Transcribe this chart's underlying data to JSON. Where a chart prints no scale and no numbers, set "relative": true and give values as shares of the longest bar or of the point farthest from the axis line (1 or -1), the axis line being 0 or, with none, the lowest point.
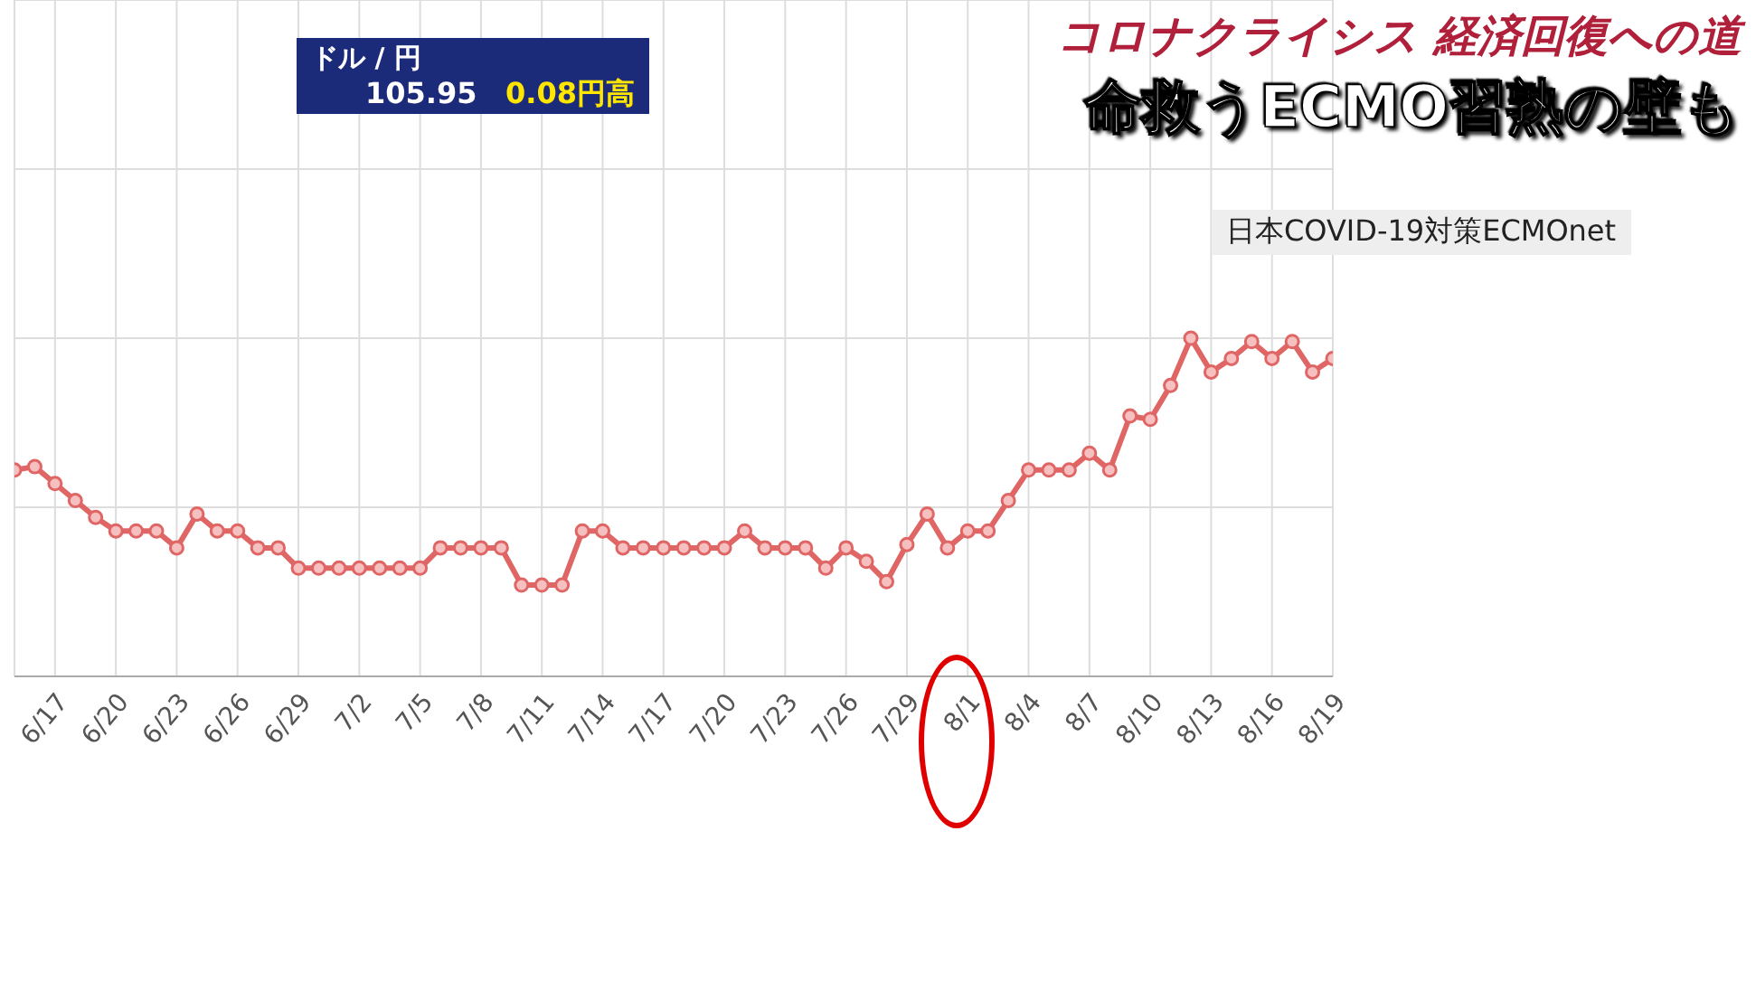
{
  "chart_data": {
    "type": "line",
    "title": "コロナクライシス 経済回復への道",
    "subtitle": "命救うECMO習熟の壁も",
    "annotations": [
      "日本COVID-19対策ECMOnet",
      "ドル / 円",
      "105.95",
      "0.08円高"
    ],
    "relative": true,
    "grid": true,
    "marker": "circle",
    "line_style": "solid",
    "x": [
      "--06-15",
      "--06-16",
      "--06-17",
      "--06-18",
      "--06-19",
      "--06-20",
      "--06-21",
      "--06-22",
      "--06-23",
      "--06-24",
      "--06-25",
      "--06-26",
      "--06-27",
      "--06-28",
      "--06-29",
      "--06-30",
      "--07-01",
      "--07-02",
      "--07-03",
      "--07-04",
      "--07-05",
      "--07-06",
      "--07-07",
      "--07-08",
      "--07-09",
      "--07-10",
      "--07-11",
      "--07-12",
      "--07-13",
      "--07-14",
      "--07-15",
      "--07-16",
      "--07-17",
      "--07-18",
      "--07-19",
      "--07-20",
      "--07-21",
      "--07-22",
      "--07-23",
      "--07-24",
      "--07-25",
      "--07-26",
      "--07-27",
      "--07-28",
      "--07-29",
      "--07-30",
      "--07-31",
      "--08-01",
      "--08-02",
      "--08-03",
      "--08-04",
      "--08-05",
      "--08-06",
      "--08-07",
      "--08-08",
      "--08-09",
      "--08-10",
      "--08-11",
      "--08-12",
      "--08-13",
      "--08-14",
      "--08-15",
      "--08-16",
      "--08-17",
      "--08-18",
      "--08-19"
    ],
    "series": [
      {
        "color": "#e06666",
        "values": [
          0.61,
          0.62,
          0.57,
          0.52,
          0.47,
          0.43,
          0.43,
          0.43,
          0.38,
          0.48,
          0.43,
          0.43,
          0.38,
          0.38,
          0.32,
          0.32,
          0.32,
          0.32,
          0.32,
          0.32,
          0.32,
          0.38,
          0.38,
          0.38,
          0.38,
          0.27,
          0.27,
          0.27,
          0.43,
          0.43,
          0.38,
          0.38,
          0.38,
          0.38,
          0.38,
          0.38,
          0.43,
          0.38,
          0.38,
          0.38,
          0.32,
          0.38,
          0.34,
          0.28,
          0.39,
          0.48,
          0.38,
          0.43,
          0.43,
          0.52,
          0.61,
          0.61,
          0.61,
          0.66,
          0.61,
          0.77,
          0.76,
          0.86,
          1,
          0.9,
          0.94,
          0.99,
          0.94,
          0.99,
          0.9,
          0.94
        ]
      }
    ],
    "xlim": [
      "--06-15",
      "--08-19"
    ],
    "xticks": [
      {
        "value": "--06-17",
        "label": "6/17"
      },
      {
        "value": "--06-20",
        "label": "6/20"
      },
      {
        "value": "--06-23",
        "label": "6/23"
      },
      {
        "value": "--06-26",
        "label": "6/26"
      },
      {
        "value": "--06-29",
        "label": "6/29"
      },
      {
        "value": "--07-02",
        "label": "7/2"
      },
      {
        "value": "--07-05",
        "label": "7/5"
      },
      {
        "value": "--07-08",
        "label": "7/8"
      },
      {
        "value": "--07-11",
        "label": "7/11"
      },
      {
        "value": "--07-14",
        "label": "7/14"
      },
      {
        "value": "--07-17",
        "label": "7/17"
      },
      {
        "value": "--07-20",
        "label": "7/20"
      },
      {
        "value": "--07-23",
        "label": "7/23"
      },
      {
        "value": "--07-26",
        "label": "7/26"
      },
      {
        "value": "--07-29",
        "label": "7/29"
      },
      {
        "value": "--08-01",
        "label": "8/1"
      },
      {
        "value": "--08-04",
        "label": "8/4"
      },
      {
        "value": "--08-07",
        "label": "8/7"
      },
      {
        "value": "--08-10",
        "label": "8/10"
      },
      {
        "value": "--08-13",
        "label": "8/13"
      },
      {
        "value": "--08-16",
        "label": "8/16"
      },
      {
        "value": "--08-19",
        "label": "8/19"
      }
    ]
  }
}
